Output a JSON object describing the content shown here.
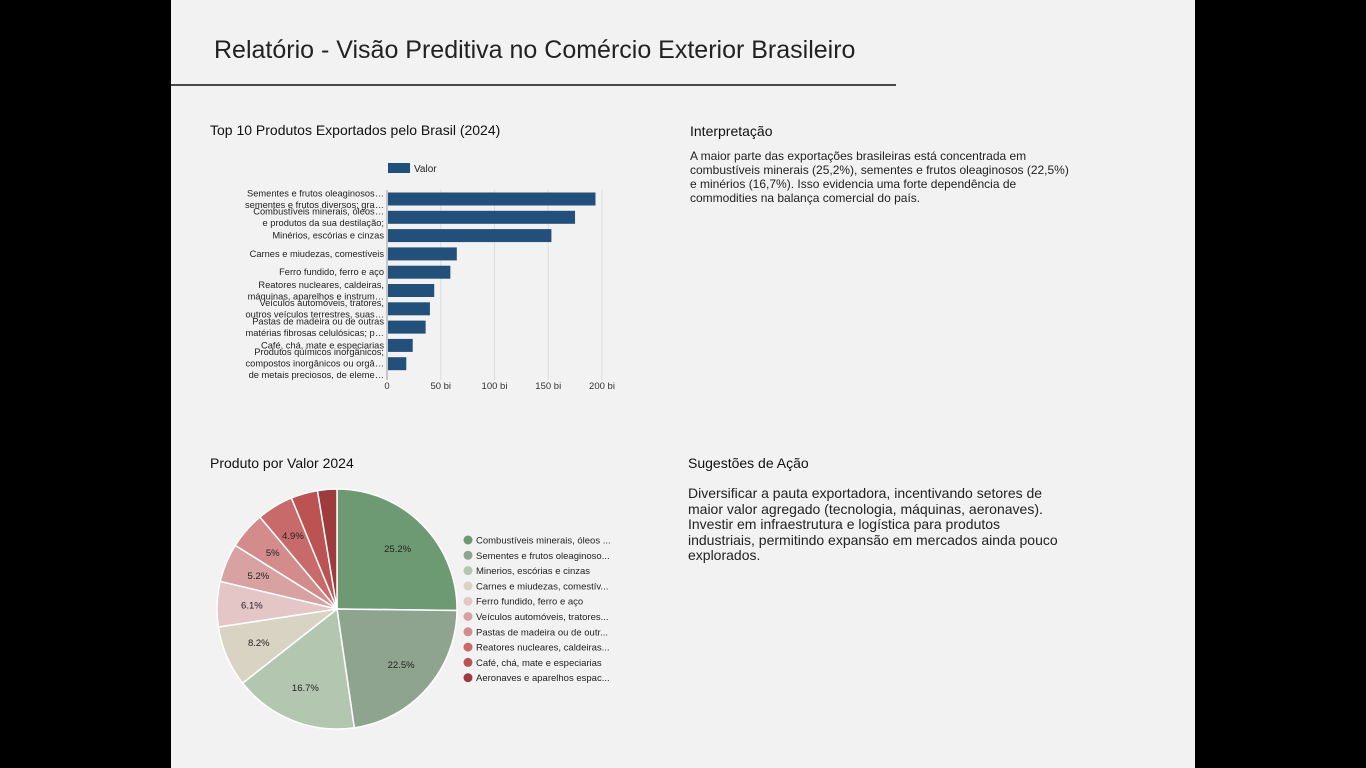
{
  "report": {
    "title": "Relatório - Visão Preditiva no Comércio Exterior Brasileiro"
  },
  "bar_section": {
    "title": "Top 10 Produtos Exportados pelo Brasil (2024)"
  },
  "interpretation": {
    "title": "Interpretação",
    "text": "A maior parte das exportações brasileiras está concentrada em combustíveis minerais (25,2%), sementes e frutos oleaginosos (22,5%) e minérios (16,7%). Isso evidencia uma forte dependência de commodities na balança comercial do país."
  },
  "pie_section": {
    "title": "Produto por Valor 2024"
  },
  "suggestions": {
    "title": "Sugestões de Ação",
    "text": "Diversificar a pauta exportadora, incentivando setores de maior valor agregado (tecnologia, máquinas, aeronaves). Investir em infraestrutura e logística para produtos industriais, permitindo expansão em mercados ainda pouco explorados."
  },
  "colors": {
    "bar": "#234f7b",
    "page_bg": "#f2f2f2",
    "outer_bg": "#000000",
    "pie": [
      "#6e9a73",
      "#8ea48f",
      "#b3c6b0",
      "#d9d3c4",
      "#e4c6c6",
      "#d8a2a2",
      "#d38b8b",
      "#c86a6a",
      "#bb5353",
      "#9e3b3d"
    ]
  },
  "chart_data": [
    {
      "type": "bar",
      "orientation": "horizontal",
      "legend": [
        "Valor"
      ],
      "legend_position": "top",
      "categories": [
        [
          "Sementes e frutos oleaginosos…",
          "sementes e frutos diversos; gra…"
        ],
        [
          "Combustíveis minerais, óleos…",
          "e produtos da sua destilação;"
        ],
        [
          "Minérios, escórias e cinzas"
        ],
        [
          "Carnes e miudezas, comestíveis"
        ],
        [
          "Ferro fundido, ferro e aço"
        ],
        [
          "Reatores nucleares, caldeiras,",
          "máquinas, aparelhos e instrum…"
        ],
        [
          "Veículos automóveis, tratores,",
          "outros veículos terrestres, suas…"
        ],
        [
          "Pastas de madeira ou de outras",
          "matérias fibrosas celulósicas; p…"
        ],
        [
          "Café, chá, mate e especiarias"
        ],
        [
          "Produtos químicos inorgânicos;",
          "compostos inorgânicos ou orgâ…",
          "de metais preciosos, de eleme…"
        ]
      ],
      "series": [
        {
          "name": "Valor",
          "values": [
            193,
            174,
            152,
            64,
            58,
            43,
            39,
            35,
            23,
            17
          ]
        }
      ],
      "x_ticks": [
        "0",
        "50 bi",
        "100 bi",
        "150 bi",
        "200 bi"
      ],
      "xlim": [
        0,
        200
      ],
      "grid": true
    },
    {
      "type": "pie",
      "labels": [
        "Combustíveis minerais, óleos ...",
        "Sementes e frutos oleaginoso...",
        "Minerios, escórias e cinzas",
        "Carnes e miudezas, comestív...",
        "Ferro fundido, ferro e aço",
        "Veículos automóveis, tratores...",
        "Pastas de madeira ou de outr...",
        "Reatores nucleares, caldeiras...",
        "Café, chá, mate e especiarias",
        "Aeronaves e aparelhos espac..."
      ],
      "values": [
        25.2,
        22.5,
        16.7,
        8.2,
        6.1,
        5.2,
        5,
        4.9,
        3.6,
        2.6
      ],
      "slice_labels": [
        "25.2%",
        "22.5%",
        "16.7%",
        "8.2%",
        "6.1%",
        "5.2%",
        "5%",
        "4.9%",
        "",
        ""
      ],
      "legend_position": "right"
    }
  ]
}
